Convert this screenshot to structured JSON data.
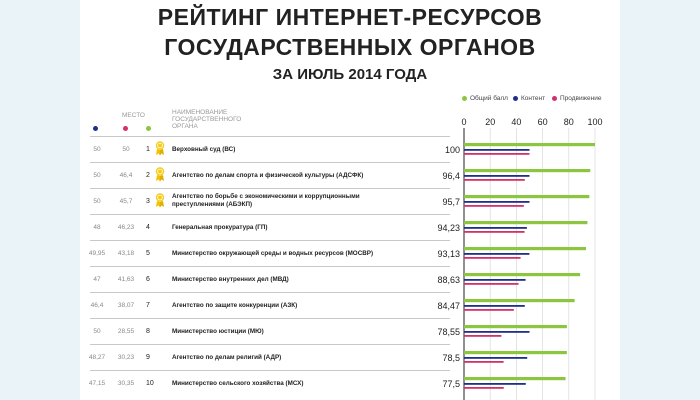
{
  "title": {
    "line1": "РЕЙТИНГ ИНТЕРНЕТ-РЕСУРСОВ",
    "line2": "ГОСУДАРСТВЕННЫХ ОРГАНОВ",
    "line3": "ЗА ИЮЛЬ 2014 ГОДА"
  },
  "table_headers": {
    "place": "МЕСТО",
    "name": "НАИМЕНОВАНИЕ ГОСУДАРСТВЕННОГО ОРГАНА"
  },
  "colors": {
    "total": "#8cc63e",
    "content": "#1f2f8a",
    "promotion": "#d4306f"
  },
  "chart_data": {
    "type": "bar",
    "orientation": "horizontal",
    "title": "РЕЙТИНГ ИНТЕРНЕТ-РЕСУРСОВ ГОСУДАРСТВЕННЫХ ОРГАНОВ ЗА ИЮЛЬ 2014 ГОДА",
    "xlim": [
      0,
      100
    ],
    "x_ticks": [
      "0",
      "20",
      "40",
      "60",
      "80",
      "100"
    ],
    "legend": [
      "Общий балл",
      "Контент",
      "Продвижение"
    ],
    "legend_position": "top-right",
    "categories": [
      "Верховный суд (ВС)",
      "Агентство по делам спорта и физической культуры (АДСФК)",
      "Агентство по борьбе с экономическими и коррупционными преступлениями (АБЭКП)",
      "Генеральная прокуратура (ГП)",
      "Министерство окружающей среды и водных ресурсов (МОСВР)",
      "Министерство внутренних дел (МВД)",
      "Агентство по защите конкуренции (АЗК)",
      "Министерство юстиции (МЮ)",
      "Агентство по делам религий (АДР)",
      "Министерство сельского хозяйства (МСХ)"
    ],
    "ranks": [
      "1",
      "2",
      "3",
      "4",
      "5",
      "6",
      "7",
      "8",
      "9",
      "10"
    ],
    "content_scores": [
      "50",
      "50",
      "50",
      "48",
      "49,95",
      "47",
      "46,4",
      "50",
      "48,27",
      "47,15"
    ],
    "promotion_scores": [
      "50",
      "46,4",
      "45,7",
      "46,23",
      "43,18",
      "41,63",
      "38,07",
      "28,55",
      "30,23",
      "30,35"
    ],
    "total_labels": [
      "100",
      "96,4",
      "95,7",
      "94,23",
      "93,13",
      "88,63",
      "84,47",
      "78,55",
      "78,5",
      "77,5"
    ],
    "series": [
      {
        "name": "Общий балл",
        "values": [
          100,
          96.4,
          95.7,
          94.23,
          93.13,
          88.63,
          84.47,
          78.55,
          78.5,
          77.5
        ]
      },
      {
        "name": "Контент",
        "values": [
          50,
          50,
          50,
          48,
          49.95,
          47,
          46.4,
          50,
          48.27,
          47.15
        ]
      },
      {
        "name": "Продвижение",
        "values": [
          50,
          46.4,
          45.7,
          46.23,
          43.18,
          41.63,
          38.07,
          28.55,
          30.23,
          30.35
        ]
      }
    ]
  }
}
